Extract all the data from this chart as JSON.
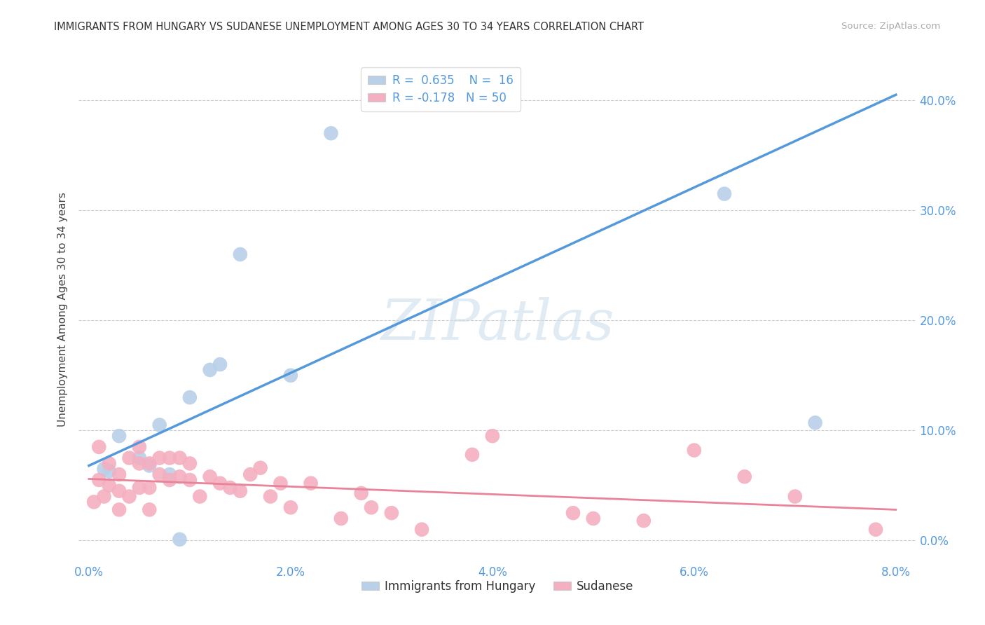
{
  "title": "IMMIGRANTS FROM HUNGARY VS SUDANESE UNEMPLOYMENT AMONG AGES 30 TO 34 YEARS CORRELATION CHART",
  "source": "Source: ZipAtlas.com",
  "ylabel": "Unemployment Among Ages 30 to 34 years",
  "xlabel_ticks": [
    "0.0%",
    "2.0%",
    "4.0%",
    "6.0%",
    "8.0%"
  ],
  "xlabel_vals": [
    0.0,
    0.02,
    0.04,
    0.06,
    0.08
  ],
  "ylabel_ticks": [
    "0.0%",
    "10.0%",
    "20.0%",
    "30.0%",
    "40.0%"
  ],
  "ylabel_vals": [
    0.0,
    0.1,
    0.2,
    0.3,
    0.4
  ],
  "xlim": [
    -0.001,
    0.082
  ],
  "ylim": [
    -0.02,
    0.44
  ],
  "blue_R": 0.635,
  "blue_N": 16,
  "pink_R": -0.178,
  "pink_N": 50,
  "blue_color": "#b8d0e8",
  "pink_color": "#f4afc0",
  "blue_line_color": "#5599dd",
  "pink_line_color": "#e8849a",
  "watermark_text": "ZIPatlas",
  "blue_line_x0": 0.0,
  "blue_line_y0": 0.068,
  "blue_line_x1": 0.08,
  "blue_line_y1": 0.405,
  "pink_line_x0": 0.0,
  "pink_line_y0": 0.056,
  "pink_line_x1": 0.08,
  "pink_line_y1": 0.028,
  "blue_points_x": [
    0.0015,
    0.003,
    0.005,
    0.007,
    0.008,
    0.009,
    0.01,
    0.012,
    0.013,
    0.015,
    0.02,
    0.024,
    0.063,
    0.072,
    0.002,
    0.006
  ],
  "blue_points_y": [
    0.065,
    0.095,
    0.075,
    0.105,
    0.06,
    0.001,
    0.13,
    0.155,
    0.16,
    0.26,
    0.15,
    0.37,
    0.315,
    0.107,
    0.063,
    0.068
  ],
  "pink_points_x": [
    0.0005,
    0.001,
    0.001,
    0.0015,
    0.002,
    0.002,
    0.003,
    0.003,
    0.003,
    0.004,
    0.004,
    0.005,
    0.005,
    0.005,
    0.006,
    0.006,
    0.006,
    0.007,
    0.007,
    0.008,
    0.008,
    0.009,
    0.009,
    0.01,
    0.01,
    0.011,
    0.012,
    0.013,
    0.014,
    0.015,
    0.016,
    0.017,
    0.018,
    0.019,
    0.02,
    0.022,
    0.025,
    0.027,
    0.028,
    0.03,
    0.033,
    0.038,
    0.04,
    0.048,
    0.05,
    0.055,
    0.06,
    0.065,
    0.07,
    0.078
  ],
  "pink_points_y": [
    0.035,
    0.085,
    0.055,
    0.04,
    0.07,
    0.05,
    0.06,
    0.045,
    0.028,
    0.075,
    0.04,
    0.085,
    0.07,
    0.048,
    0.07,
    0.048,
    0.028,
    0.075,
    0.06,
    0.075,
    0.055,
    0.075,
    0.058,
    0.055,
    0.07,
    0.04,
    0.058,
    0.052,
    0.048,
    0.045,
    0.06,
    0.066,
    0.04,
    0.052,
    0.03,
    0.052,
    0.02,
    0.043,
    0.03,
    0.025,
    0.01,
    0.078,
    0.095,
    0.025,
    0.02,
    0.018,
    0.082,
    0.058,
    0.04,
    0.01
  ],
  "background_color": "#ffffff",
  "grid_color": "#cccccc",
  "tick_color": "#5599dd",
  "title_color": "#333333",
  "source_color": "#aaaaaa",
  "ylabel_color": "#444444"
}
